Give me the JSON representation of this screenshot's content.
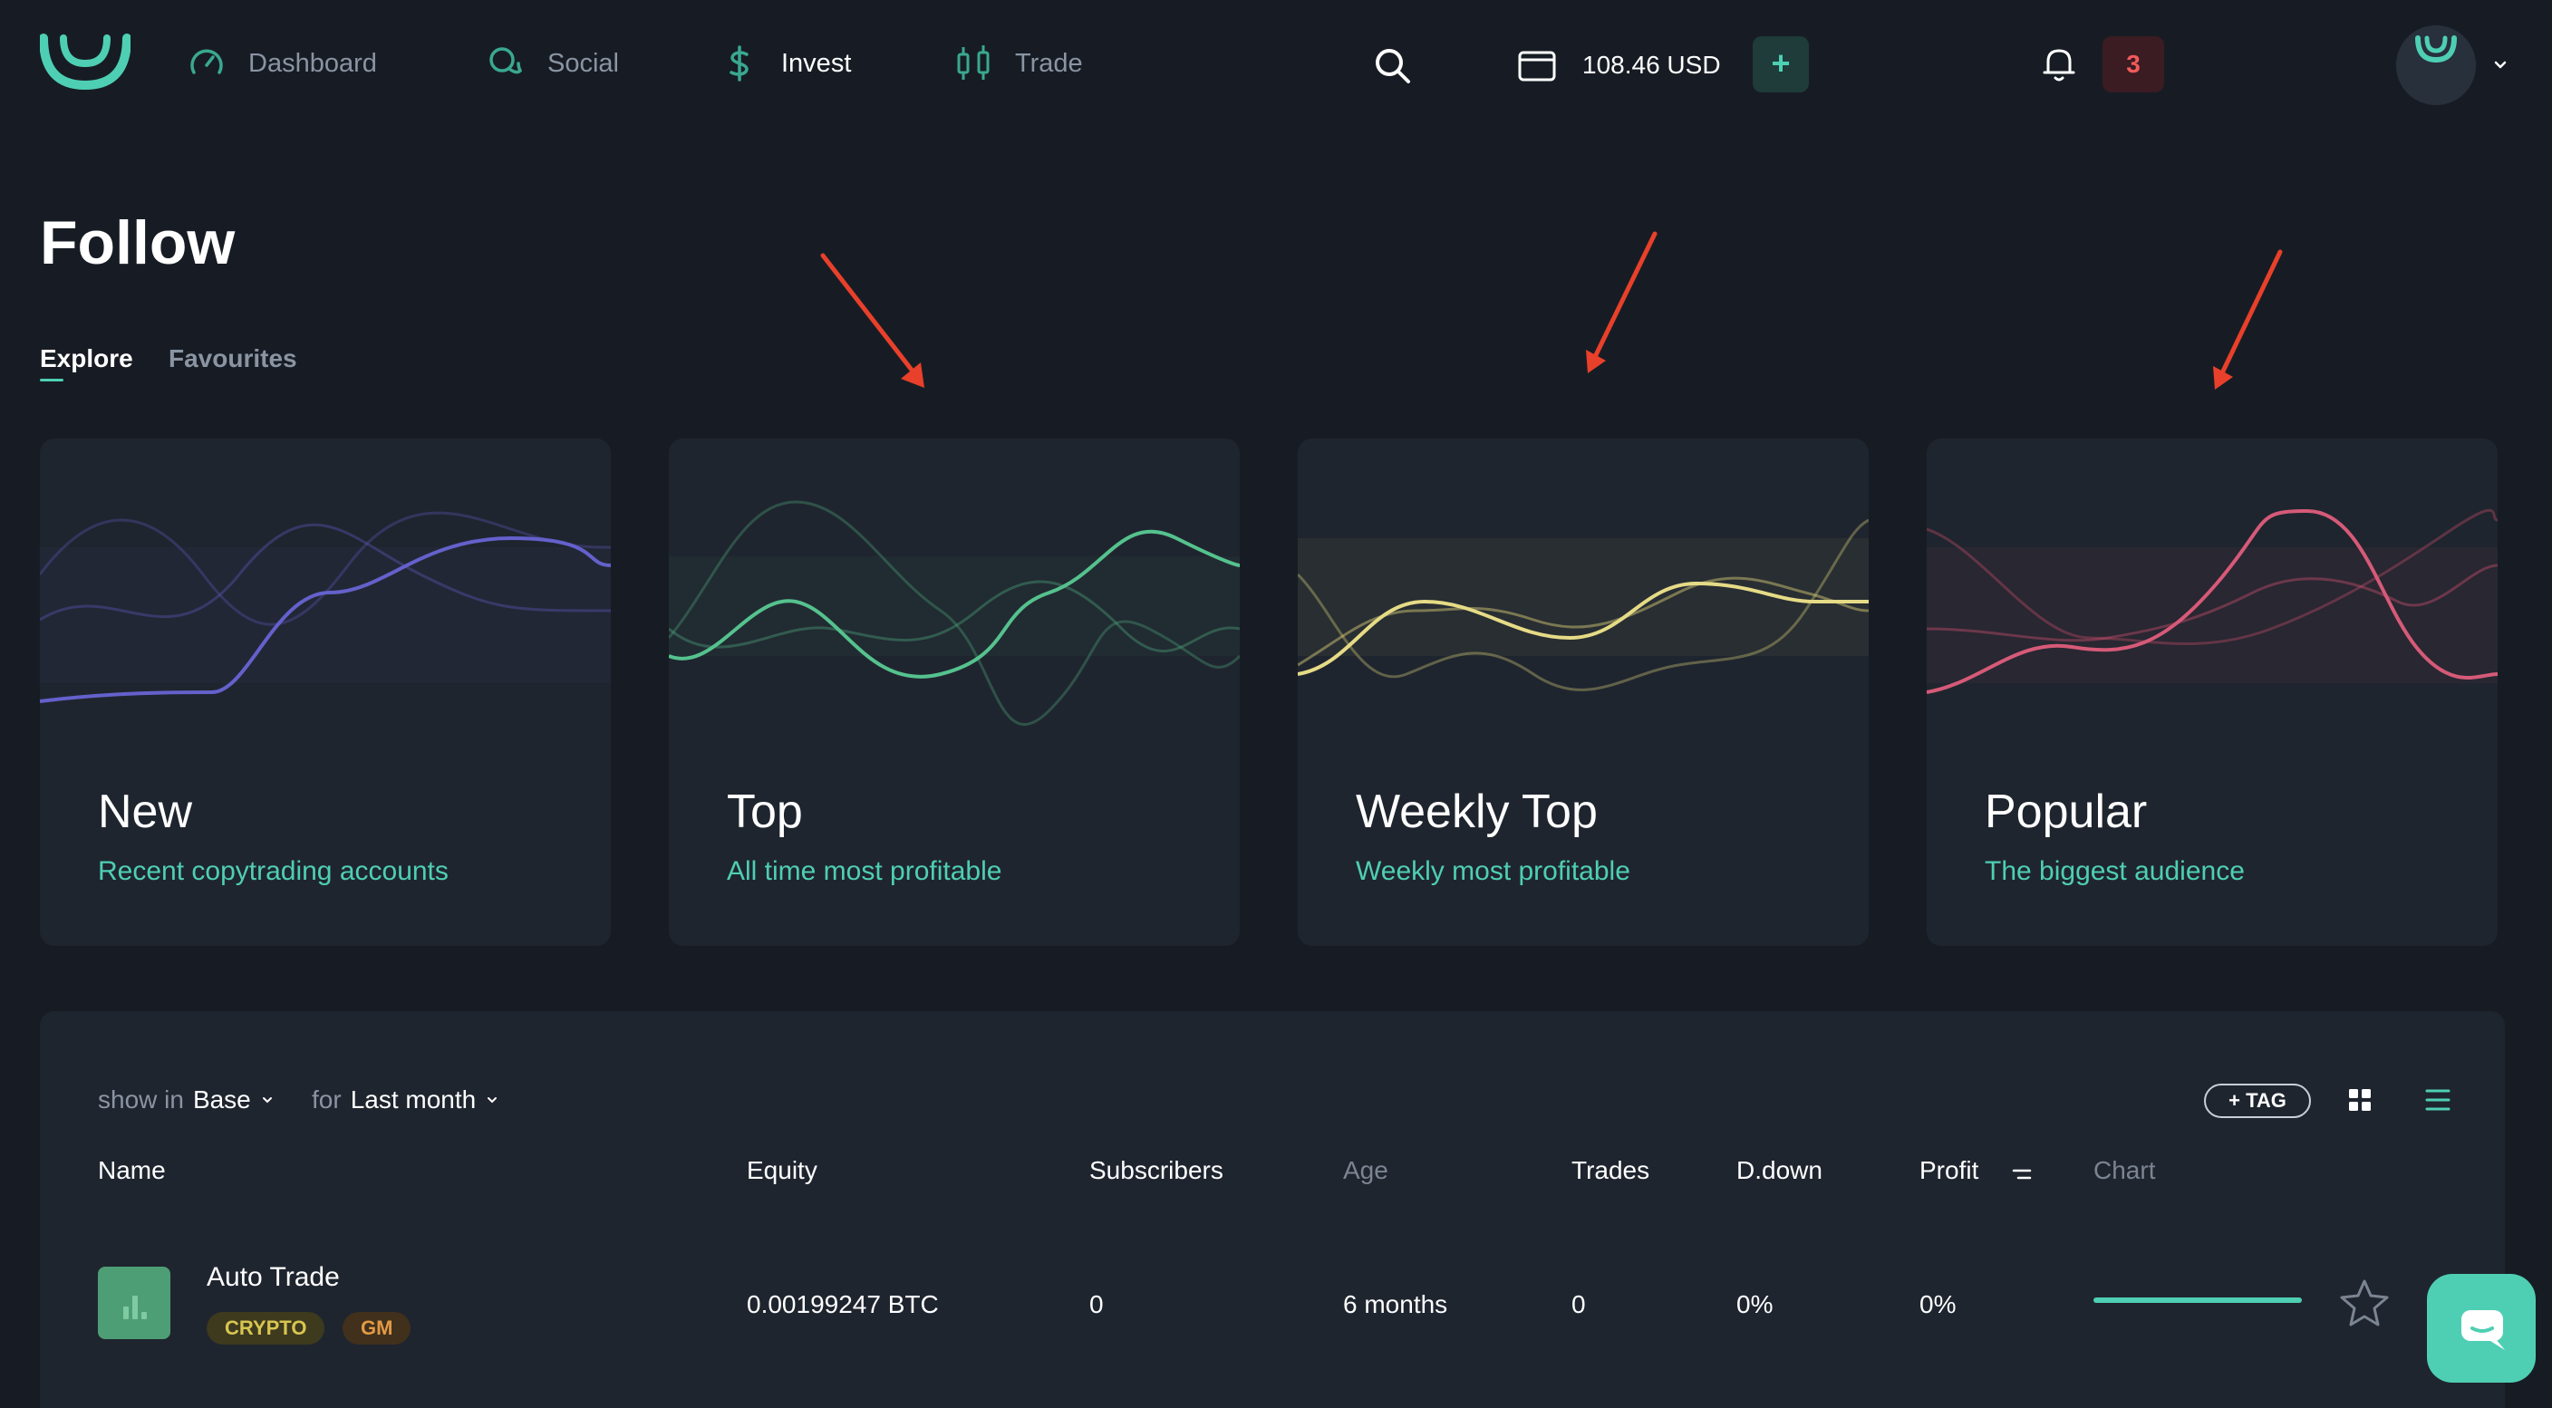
{
  "nav": {
    "items": [
      {
        "label": "Dashboard",
        "icon": "gauge-icon"
      },
      {
        "label": "Social",
        "icon": "chat-bubbles-icon"
      },
      {
        "label": "Invest",
        "icon": "dollar-icon"
      },
      {
        "label": "Trade",
        "icon": "candlestick-icon"
      }
    ],
    "active": "Invest"
  },
  "header": {
    "balance": "108.46 USD",
    "add_label": "+",
    "notifications": "3"
  },
  "page": {
    "title": "Follow",
    "tabs": [
      {
        "label": "Explore",
        "active": true
      },
      {
        "label": "Favourites",
        "active": false
      }
    ]
  },
  "cards": [
    {
      "title": "New",
      "subtitle": "Recent copytrading accounts",
      "color": "#5b57b8"
    },
    {
      "title": "Top",
      "subtitle": "All time most profitable",
      "color": "#4ea67a"
    },
    {
      "title": "Weekly Top",
      "subtitle": "Weekly most profitable",
      "color": "#e0d37a"
    },
    {
      "title": "Popular",
      "subtitle": "The biggest audience",
      "color": "#d2506e"
    }
  ],
  "filters": {
    "show_in_label": "show in",
    "show_in_value": "Base",
    "for_label": "for",
    "for_value": "Last month",
    "tag_button": "+ TAG"
  },
  "table": {
    "columns": [
      "Name",
      "Equity",
      "Subscribers",
      "Age",
      "Trades",
      "D.down",
      "Profit",
      "Chart"
    ],
    "rows": [
      {
        "name": "Auto Trade",
        "tags": [
          "CRYPTO",
          "GM"
        ],
        "equity": "0.00199247 BTC",
        "subscribers": "0",
        "age": "6 months",
        "trades": "0",
        "ddown": "0%",
        "profit": "0%"
      }
    ]
  },
  "colors": {
    "accent": "#4ecfb3",
    "background": "#171c24",
    "card": "#1f252f",
    "alert": "#f25a5a",
    "arrow": "#e8402a"
  }
}
